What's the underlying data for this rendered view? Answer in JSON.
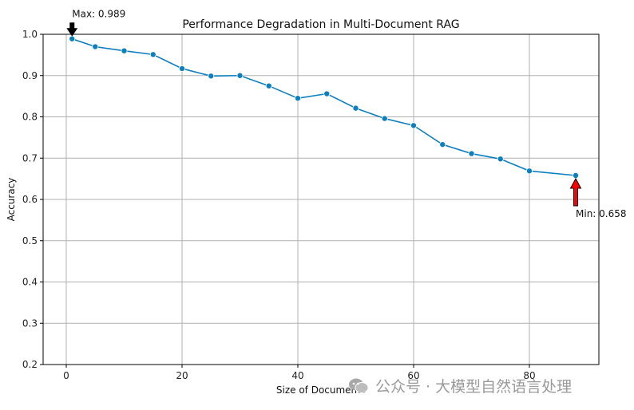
{
  "chart_data": {
    "type": "line",
    "title": "Performance Degradation in Multi-Document RAG",
    "xlabel": "Size of Documents",
    "ylabel": "Accuracy",
    "xlim": [
      -4,
      92
    ],
    "ylim": [
      0.2,
      1.0
    ],
    "xticks": [
      0,
      20,
      40,
      60,
      80
    ],
    "yticks": [
      0.2,
      0.3,
      0.4,
      0.5,
      0.6,
      0.7,
      0.8,
      0.9,
      1.0
    ],
    "grid": true,
    "line_color": "#0c7fbf",
    "series": [
      {
        "name": "Accuracy",
        "x": [
          1,
          5,
          10,
          15,
          20,
          25,
          30,
          35,
          40,
          45,
          50,
          55,
          60,
          65,
          70,
          75,
          80,
          88
        ],
        "y": [
          0.989,
          0.97,
          0.96,
          0.951,
          0.917,
          0.899,
          0.9,
          0.875,
          0.845,
          0.856,
          0.821,
          0.796,
          0.779,
          0.733,
          0.711,
          0.698,
          0.669,
          0.658
        ]
      }
    ],
    "annotations": [
      {
        "label": "Max: 0.989",
        "x": 1,
        "y": 0.989,
        "arrow_color": "#000000",
        "kind": "max"
      },
      {
        "label": "Min: 0.658",
        "x": 88,
        "y": 0.658,
        "arrow_color": "#ff0000",
        "kind": "min"
      }
    ]
  },
  "watermark": {
    "text": "公众号 · 大模型自然语言处理",
    "icon": "wechat-icon"
  }
}
